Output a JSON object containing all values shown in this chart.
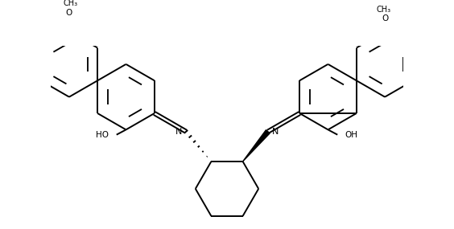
{
  "background_color": "#ffffff",
  "line_color": "#000000",
  "line_width": 1.4,
  "fig_width": 5.64,
  "fig_height": 2.85,
  "dpi": 100,
  "xlim": [
    -2.8,
    2.8
  ],
  "ylim": [
    -1.45,
    1.45
  ]
}
